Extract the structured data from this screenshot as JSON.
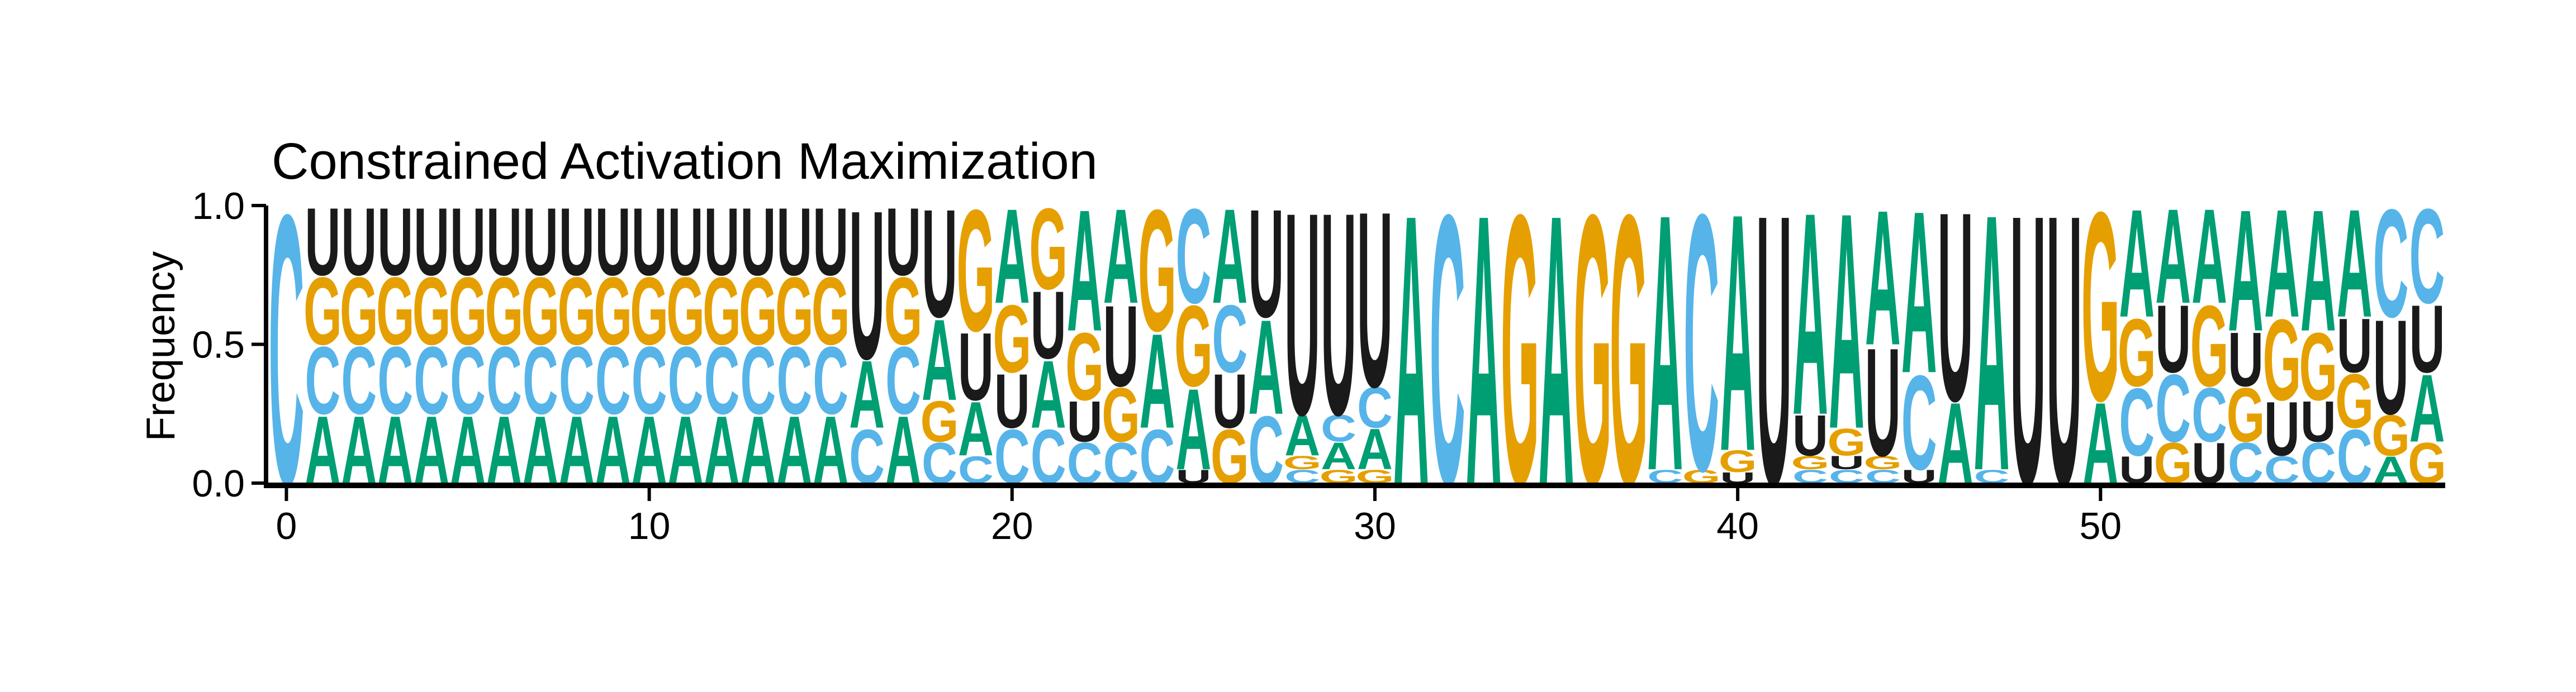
{
  "chart_data": {
    "type": "sequence_logo",
    "title": "Constrained Activation Maximization",
    "xlabel": "",
    "ylabel": "Frequency",
    "ylim": [
      0,
      1
    ],
    "yticks": [
      "0.0",
      "0.5",
      "1.0"
    ],
    "xlim": [
      -0.5,
      59.5
    ],
    "xticks": [
      "0",
      "10",
      "20",
      "30",
      "40",
      "50"
    ],
    "xtick_values": [
      0,
      10,
      20,
      30,
      40,
      50
    ],
    "ytick_values": [
      0,
      0.5,
      1
    ],
    "colors": {
      "A": "#009E73",
      "C": "#56B4E9",
      "G": "#E69F00",
      "U": "#1A1A1A"
    },
    "positions": [
      {
        "A": 0.0,
        "C": 1.0,
        "G": 0.0,
        "U": 0.0
      },
      {
        "A": 0.25,
        "C": 0.25,
        "G": 0.25,
        "U": 0.25
      },
      {
        "A": 0.25,
        "C": 0.25,
        "G": 0.25,
        "U": 0.25
      },
      {
        "A": 0.25,
        "C": 0.25,
        "G": 0.25,
        "U": 0.25
      },
      {
        "A": 0.25,
        "C": 0.25,
        "G": 0.25,
        "U": 0.25
      },
      {
        "A": 0.25,
        "C": 0.25,
        "G": 0.25,
        "U": 0.25
      },
      {
        "A": 0.25,
        "C": 0.25,
        "G": 0.25,
        "U": 0.25
      },
      {
        "A": 0.25,
        "C": 0.25,
        "G": 0.25,
        "U": 0.25
      },
      {
        "A": 0.25,
        "C": 0.25,
        "G": 0.25,
        "U": 0.25
      },
      {
        "A": 0.25,
        "C": 0.25,
        "G": 0.25,
        "U": 0.25
      },
      {
        "A": 0.25,
        "C": 0.25,
        "G": 0.25,
        "U": 0.25
      },
      {
        "A": 0.25,
        "C": 0.25,
        "G": 0.25,
        "U": 0.25
      },
      {
        "A": 0.25,
        "C": 0.25,
        "G": 0.25,
        "U": 0.25
      },
      {
        "A": 0.25,
        "C": 0.25,
        "G": 0.25,
        "U": 0.25
      },
      {
        "A": 0.25,
        "C": 0.25,
        "G": 0.25,
        "U": 0.25
      },
      {
        "A": 0.25,
        "C": 0.25,
        "G": 0.25,
        "U": 0.25
      },
      {
        "A": 0.25,
        "C": 0.2,
        "G": 0.0,
        "U": 0.55
      },
      {
        "A": 0.25,
        "C": 0.25,
        "G": 0.25,
        "U": 0.25
      },
      {
        "A": 0.3,
        "C": 0.15,
        "G": 0.15,
        "U": 0.4
      },
      {
        "A": 0.2,
        "C": 0.1,
        "G": 0.45,
        "U": 0.25
      },
      {
        "A": 0.35,
        "C": 0.2,
        "G": 0.25,
        "U": 0.2
      },
      {
        "A": 0.25,
        "C": 0.2,
        "G": 0.3,
        "U": 0.25
      },
      {
        "A": 0.45,
        "C": 0.15,
        "G": 0.25,
        "U": 0.15
      },
      {
        "A": 0.35,
        "C": 0.15,
        "G": 0.2,
        "U": 0.3
      },
      {
        "A": 0.35,
        "C": 0.2,
        "G": 0.45,
        "U": 0.0
      },
      {
        "A": 0.3,
        "C": 0.35,
        "G": 0.3,
        "U": 0.05
      },
      {
        "A": 0.35,
        "C": 0.25,
        "G": 0.2,
        "U": 0.2
      },
      {
        "A": 0.35,
        "C": 0.25,
        "G": 0.0,
        "U": 0.4
      },
      {
        "A": 0.15,
        "C": 0.05,
        "G": 0.05,
        "U": 0.75
      },
      {
        "A": 0.1,
        "C": 0.1,
        "G": 0.05,
        "U": 0.75
      },
      {
        "A": 0.15,
        "C": 0.15,
        "G": 0.05,
        "U": 0.65
      },
      {
        "A": 1.0,
        "C": 0.0,
        "G": 0.0,
        "U": 0.0
      },
      {
        "A": 0.0,
        "C": 1.0,
        "G": 0.0,
        "U": 0.0
      },
      {
        "A": 1.0,
        "C": 0.0,
        "G": 0.0,
        "U": 0.0
      },
      {
        "A": 0.0,
        "C": 0.0,
        "G": 1.0,
        "U": 0.0
      },
      {
        "A": 1.0,
        "C": 0.0,
        "G": 0.0,
        "U": 0.0
      },
      {
        "A": 0.0,
        "C": 0.0,
        "G": 1.0,
        "U": 0.0
      },
      {
        "A": 0.0,
        "C": 0.0,
        "G": 1.0,
        "U": 0.0
      },
      {
        "A": 0.95,
        "C": 0.05,
        "G": 0.0,
        "U": 0.0
      },
      {
        "A": 0.0,
        "C": 0.95,
        "G": 0.05,
        "U": 0.0
      },
      {
        "A": 0.88,
        "C": 0.0,
        "G": 0.08,
        "U": 0.04
      },
      {
        "A": 0.0,
        "C": 0.0,
        "G": 0.0,
        "U": 1.0
      },
      {
        "A": 0.75,
        "C": 0.05,
        "G": 0.05,
        "U": 0.15
      },
      {
        "A": 0.8,
        "C": 0.05,
        "G": 0.1,
        "U": 0.05
      },
      {
        "A": 0.5,
        "C": 0.05,
        "G": 0.05,
        "U": 0.4
      },
      {
        "A": 0.6,
        "C": 0.35,
        "G": 0.0,
        "U": 0.05
      },
      {
        "A": 0.3,
        "C": 0.0,
        "G": 0.0,
        "U": 0.7
      },
      {
        "A": 0.95,
        "C": 0.05,
        "G": 0.0,
        "U": 0.0
      },
      {
        "A": 0.0,
        "C": 0.0,
        "G": 0.0,
        "U": 1.0
      },
      {
        "A": 0.0,
        "C": 0.0,
        "G": 0.0,
        "U": 1.0
      },
      {
        "A": 0.3,
        "C": 0.0,
        "G": 0.7,
        "U": 0.0
      },
      {
        "A": 0.4,
        "C": 0.25,
        "G": 0.25,
        "U": 0.1
      },
      {
        "A": 0.35,
        "C": 0.25,
        "G": 0.15,
        "U": 0.25
      },
      {
        "A": 0.35,
        "C": 0.2,
        "G": 0.3,
        "U": 0.15
      },
      {
        "A": 0.45,
        "C": 0.15,
        "G": 0.2,
        "U": 0.2
      },
      {
        "A": 0.4,
        "C": 0.1,
        "G": 0.3,
        "U": 0.2
      },
      {
        "A": 0.45,
        "C": 0.15,
        "G": 0.25,
        "U": 0.15
      },
      {
        "A": 0.4,
        "C": 0.2,
        "G": 0.2,
        "U": 0.2
      },
      {
        "A": 0.1,
        "C": 0.4,
        "G": 0.15,
        "U": 0.35
      },
      {
        "A": 0.25,
        "C": 0.35,
        "G": 0.15,
        "U": 0.25
      }
    ]
  }
}
